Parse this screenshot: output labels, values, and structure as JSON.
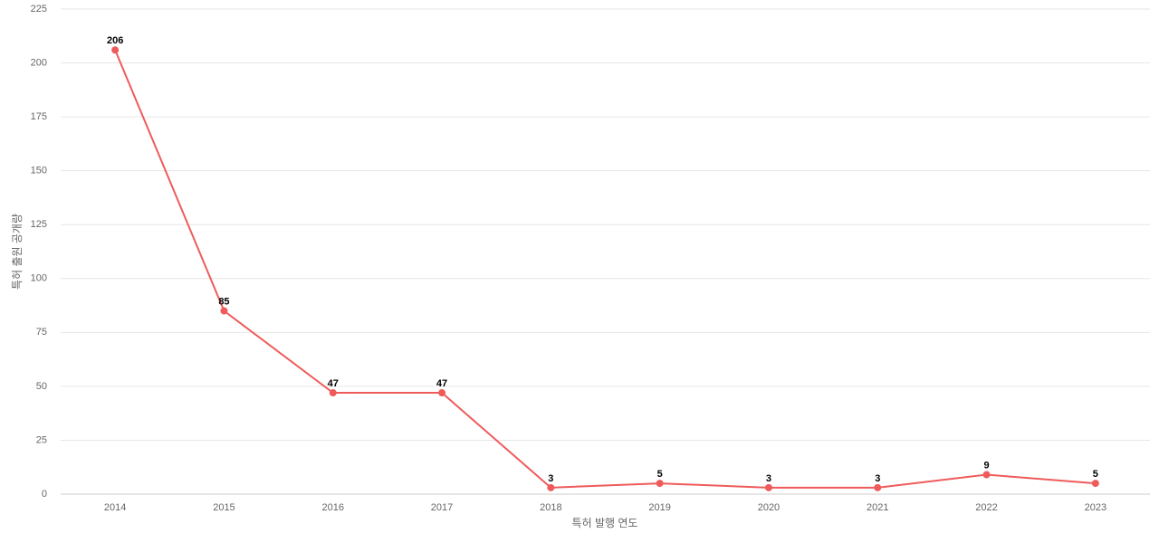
{
  "chart_data": {
    "type": "line",
    "x_label": "특허 발행 연도",
    "y_label": "특허 출원 공개량",
    "categories": [
      "2014",
      "2015",
      "2016",
      "2017",
      "2018",
      "2019",
      "2020",
      "2021",
      "2022",
      "2023"
    ],
    "series": [
      {
        "name": "특허 출원 공개량",
        "color": "#ef5b5b",
        "values": [
          206,
          85,
          47,
          47,
          3,
          5,
          3,
          3,
          9,
          5
        ]
      }
    ],
    "ylim": [
      0,
      225
    ],
    "yticks": [
      0,
      25,
      50,
      75,
      100,
      125,
      150,
      175,
      200,
      225
    ],
    "grid": true,
    "legend": false
  }
}
